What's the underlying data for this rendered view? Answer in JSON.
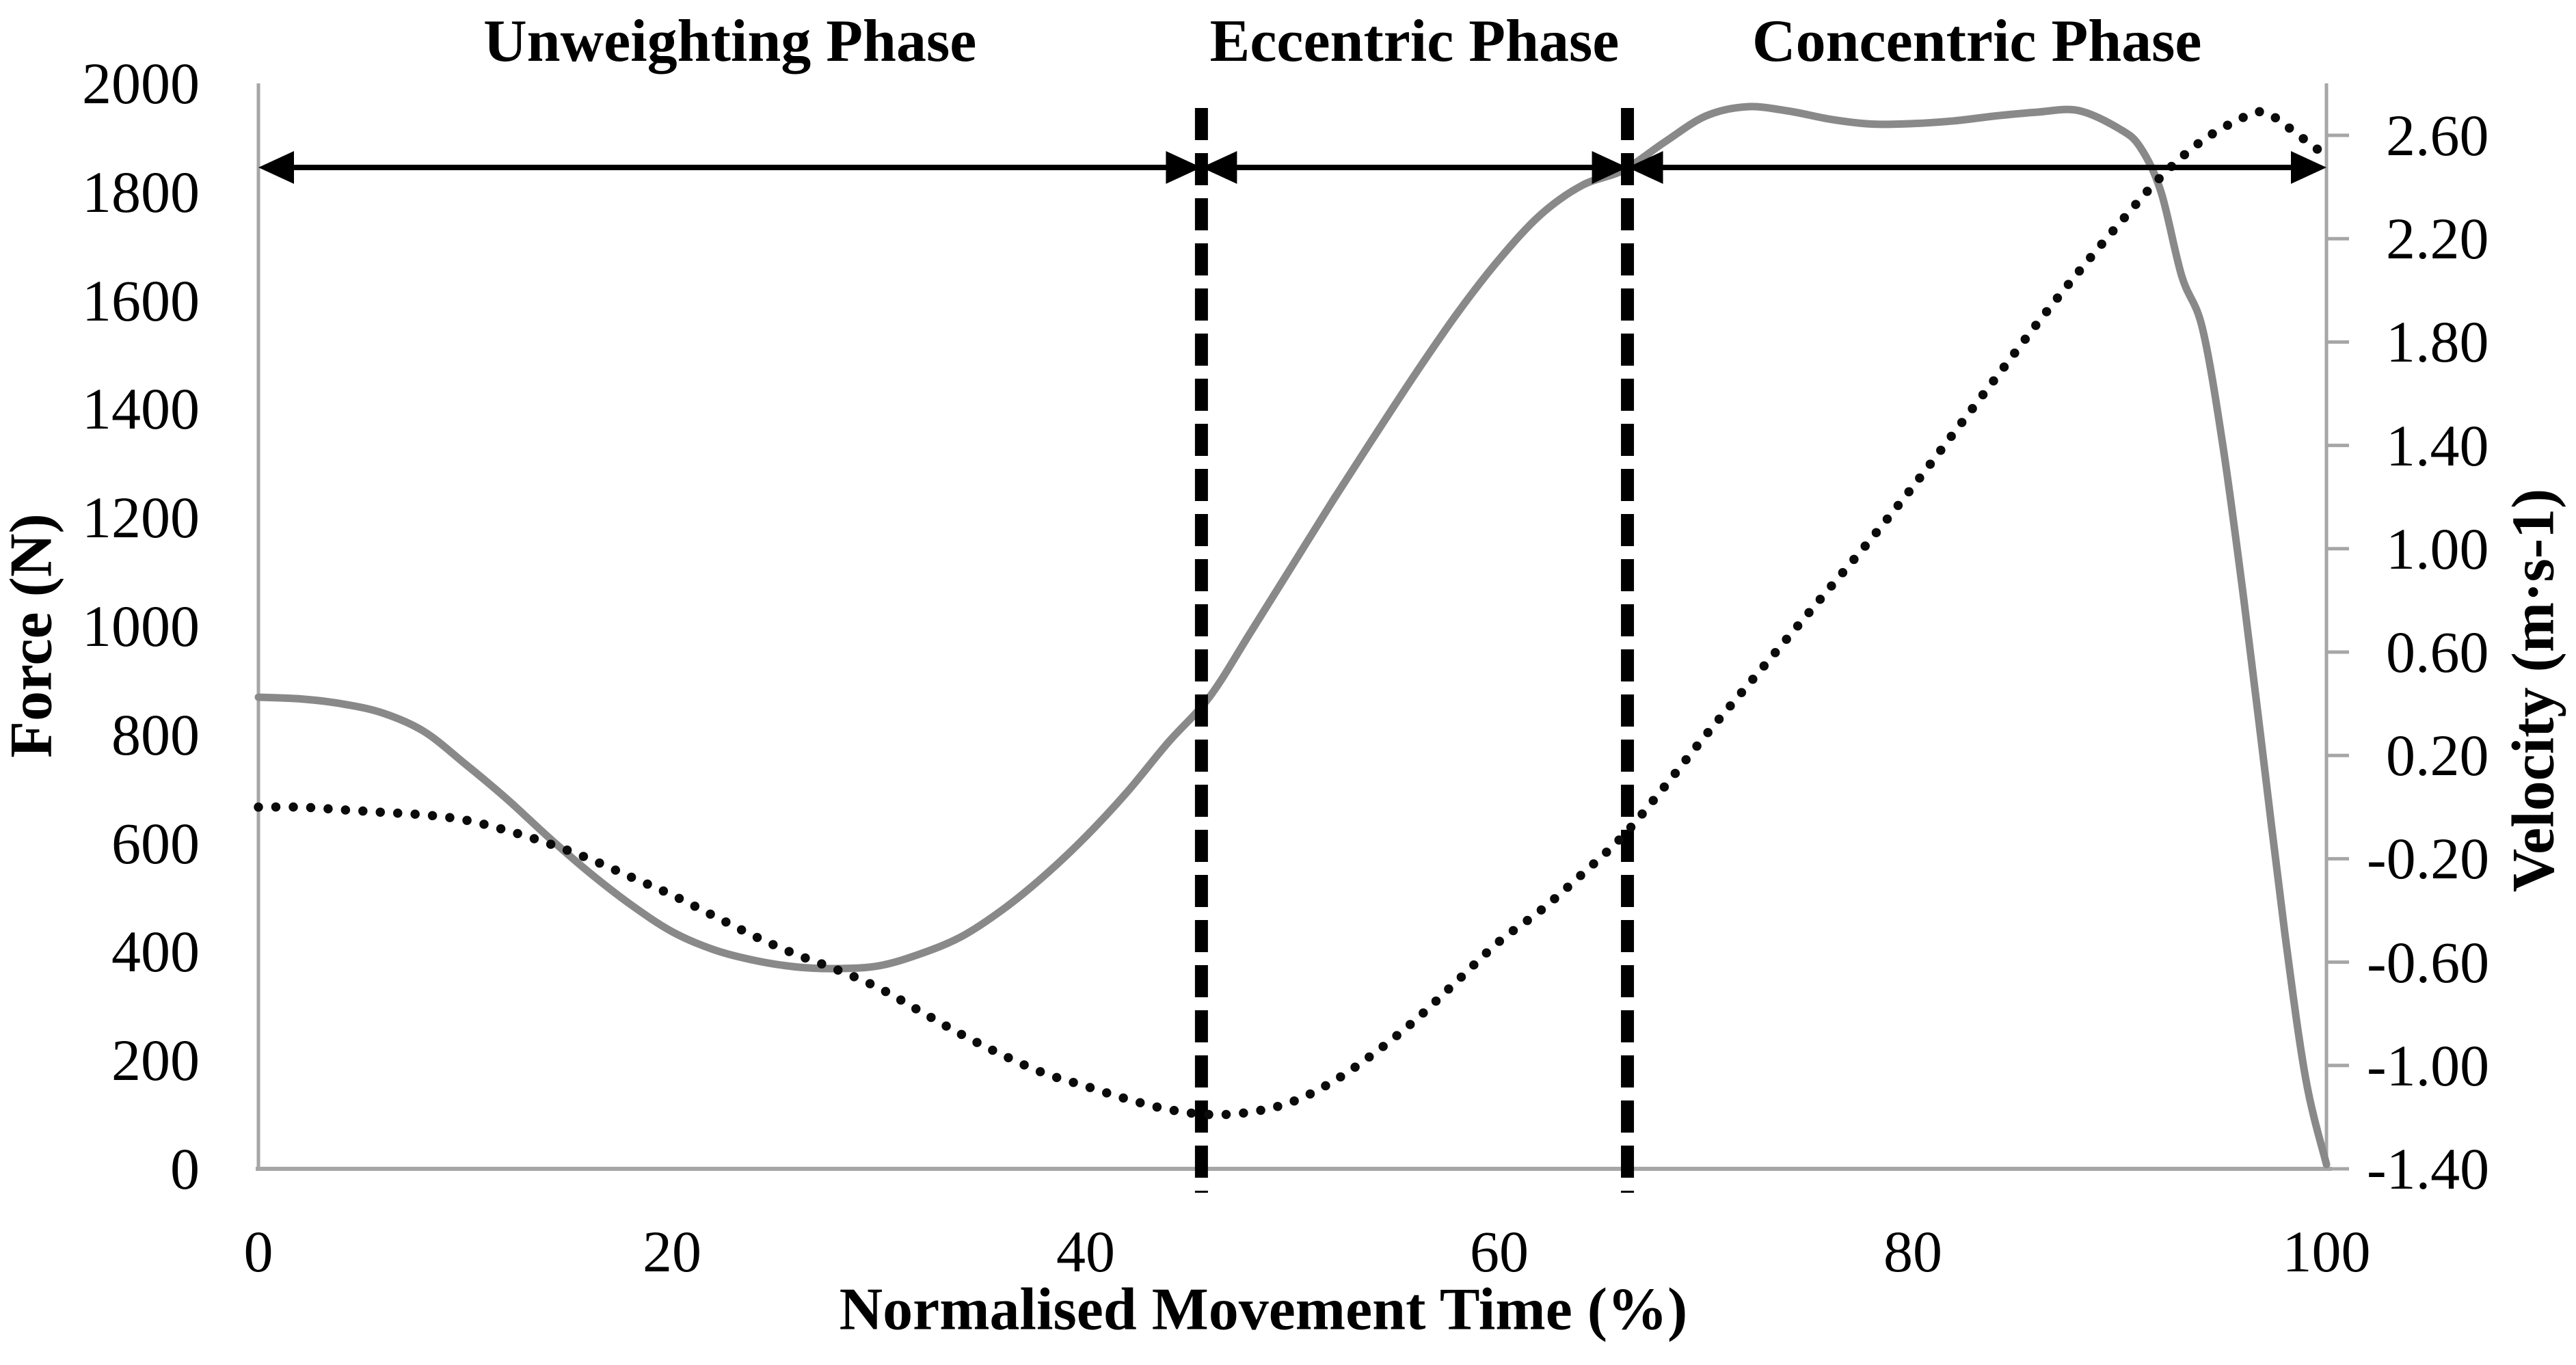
{
  "chart_data": {
    "type": "line",
    "title": "",
    "xlabel": "Normalised Movement Time (%)",
    "x_ticks": [
      "0",
      "20",
      "40",
      "60",
      "80",
      "100"
    ],
    "x_range": [
      0,
      100
    ],
    "grid": false,
    "legend": "none",
    "left_axis": {
      "title": "Force (N)",
      "range": [
        0,
        2000
      ],
      "step": 200,
      "tick_labels": [
        "2000",
        "1800",
        "1600",
        "1400",
        "1200",
        "1000",
        "800",
        "600",
        "400",
        "200",
        "0"
      ]
    },
    "right_axis": {
      "title": "Velocity (m·s-1)",
      "range": [
        -1.4,
        2.6
      ],
      "step": 0.4,
      "tick_labels": [
        "2.60",
        "2.20",
        "1.80",
        "1.40",
        "1.00",
        "0.60",
        "0.20",
        "-0.20",
        "-0.60",
        "-1.00",
        "-1.40"
      ]
    },
    "phases": [
      {
        "label": "Unweighting Phase",
        "start": 0,
        "end": 45.6
      },
      {
        "label": "Eccentric Phase",
        "start": 45.6,
        "end": 66.2
      },
      {
        "label": "Concentric Phase",
        "start": 66.2,
        "end": 100
      }
    ],
    "phase_boundaries": [
      45.6,
      66.2
    ],
    "series": [
      {
        "name": "Force",
        "axis": "left",
        "line_style": "solid",
        "color": "#898989",
        "points": [
          [
            0,
            869
          ],
          [
            2,
            866
          ],
          [
            4,
            857
          ],
          [
            6,
            840
          ],
          [
            8,
            806
          ],
          [
            10,
            746
          ],
          [
            12,
            682
          ],
          [
            14,
            612
          ],
          [
            16,
            546
          ],
          [
            18,
            487
          ],
          [
            20,
            437
          ],
          [
            22,
            404
          ],
          [
            24,
            384
          ],
          [
            26,
            372
          ],
          [
            28,
            369
          ],
          [
            30,
            374
          ],
          [
            32,
            396
          ],
          [
            34,
            428
          ],
          [
            36,
            478
          ],
          [
            38,
            540
          ],
          [
            40,
            612
          ],
          [
            42,
            694
          ],
          [
            44,
            786
          ],
          [
            46,
            870
          ],
          [
            48,
            990
          ],
          [
            50,
            1112
          ],
          [
            52,
            1234
          ],
          [
            54,
            1352
          ],
          [
            56,
            1468
          ],
          [
            58,
            1578
          ],
          [
            60,
            1676
          ],
          [
            62,
            1758
          ],
          [
            64,
            1812
          ],
          [
            66,
            1840
          ],
          [
            68,
            1892
          ],
          [
            70,
            1940
          ],
          [
            72,
            1957
          ],
          [
            74,
            1949
          ],
          [
            76,
            1934
          ],
          [
            78,
            1925
          ],
          [
            80,
            1926
          ],
          [
            82,
            1931
          ],
          [
            84,
            1940
          ],
          [
            86,
            1947
          ],
          [
            88,
            1950
          ],
          [
            90,
            1916
          ],
          [
            91,
            1882
          ],
          [
            92,
            1800
          ],
          [
            93,
            1645
          ],
          [
            94,
            1549
          ],
          [
            95,
            1330
          ],
          [
            96,
            1050
          ],
          [
            97,
            740
          ],
          [
            98,
            430
          ],
          [
            99,
            165
          ],
          [
            100,
            8
          ]
        ]
      },
      {
        "name": "Velocity",
        "axis": "right",
        "line_style": "dotted",
        "color": "#0b0b0b",
        "points": [
          [
            0,
            0.0
          ],
          [
            2,
            0.0
          ],
          [
            4,
            -0.01
          ],
          [
            6,
            -0.02
          ],
          [
            8,
            -0.03
          ],
          [
            10,
            -0.05
          ],
          [
            12,
            -0.09
          ],
          [
            14,
            -0.14
          ],
          [
            16,
            -0.2
          ],
          [
            18,
            -0.27
          ],
          [
            20,
            -0.34
          ],
          [
            22,
            -0.42
          ],
          [
            24,
            -0.5
          ],
          [
            26,
            -0.57
          ],
          [
            28,
            -0.63
          ],
          [
            30,
            -0.7
          ],
          [
            32,
            -0.79
          ],
          [
            34,
            -0.88
          ],
          [
            36,
            -0.96
          ],
          [
            38,
            -1.03
          ],
          [
            40,
            -1.08
          ],
          [
            42,
            -1.13
          ],
          [
            44,
            -1.17
          ],
          [
            46,
            -1.19
          ],
          [
            48,
            -1.18
          ],
          [
            50,
            -1.14
          ],
          [
            52,
            -1.06
          ],
          [
            54,
            -0.95
          ],
          [
            56,
            -0.82
          ],
          [
            58,
            -0.67
          ],
          [
            60,
            -0.52
          ],
          [
            62,
            -0.4
          ],
          [
            64,
            -0.26
          ],
          [
            66,
            -0.11
          ],
          [
            68,
            0.08
          ],
          [
            70,
            0.28
          ],
          [
            72,
            0.47
          ],
          [
            74,
            0.66
          ],
          [
            76,
            0.85
          ],
          [
            78,
            1.04
          ],
          [
            80,
            1.24
          ],
          [
            82,
            1.45
          ],
          [
            84,
            1.66
          ],
          [
            86,
            1.87
          ],
          [
            88,
            2.07
          ],
          [
            90,
            2.26
          ],
          [
            92,
            2.44
          ],
          [
            94,
            2.58
          ],
          [
            96,
            2.67
          ],
          [
            97,
            2.69
          ],
          [
            98,
            2.64
          ],
          [
            99,
            2.58
          ],
          [
            100,
            2.52
          ]
        ]
      }
    ],
    "annotations": {
      "arrow_color": "#000000",
      "phase_divider_color": "#000000",
      "axis_color": "#a6a6a6"
    }
  }
}
